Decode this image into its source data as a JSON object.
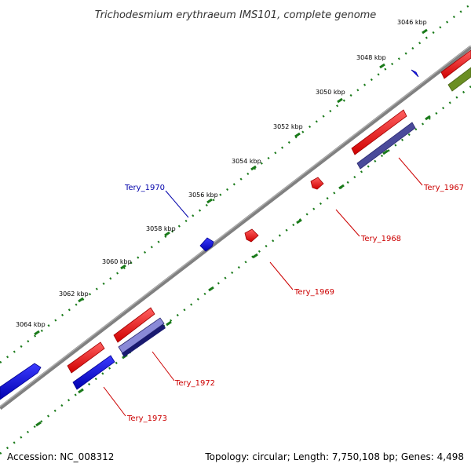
{
  "title": "Trichodesmium erythraeum IMS101, complete genome",
  "footer": {
    "accession": "Accession: NC_008312",
    "summary": "Topology: circular; Length: 7,750,108 bp; Genes: 4,498"
  },
  "ticks": [
    "3046 kbp",
    "3048 kbp",
    "3050 kbp",
    "3052 kbp",
    "3054 kbp",
    "3056 kbp",
    "3058 kbp",
    "3060 kbp",
    "3062 kbp",
    "3064 kbp"
  ],
  "genes": {
    "tery_1967": "Tery_1967",
    "tery_1968": "Tery_1968",
    "tery_1969": "Tery_1969",
    "tery_1970": "Tery_1970",
    "tery_1972": "Tery_1972",
    "tery_1973": "Tery_1973"
  },
  "colors": {
    "backbone": "#808080",
    "forward_cds": "#ff0000",
    "reverse_cds": "#0000ff",
    "gene_track": "#4a4a9a",
    "rna": "#6b8e23",
    "tick": "#1a7a1a",
    "label_red": "#cc0000",
    "label_blue": "#0000aa"
  }
}
